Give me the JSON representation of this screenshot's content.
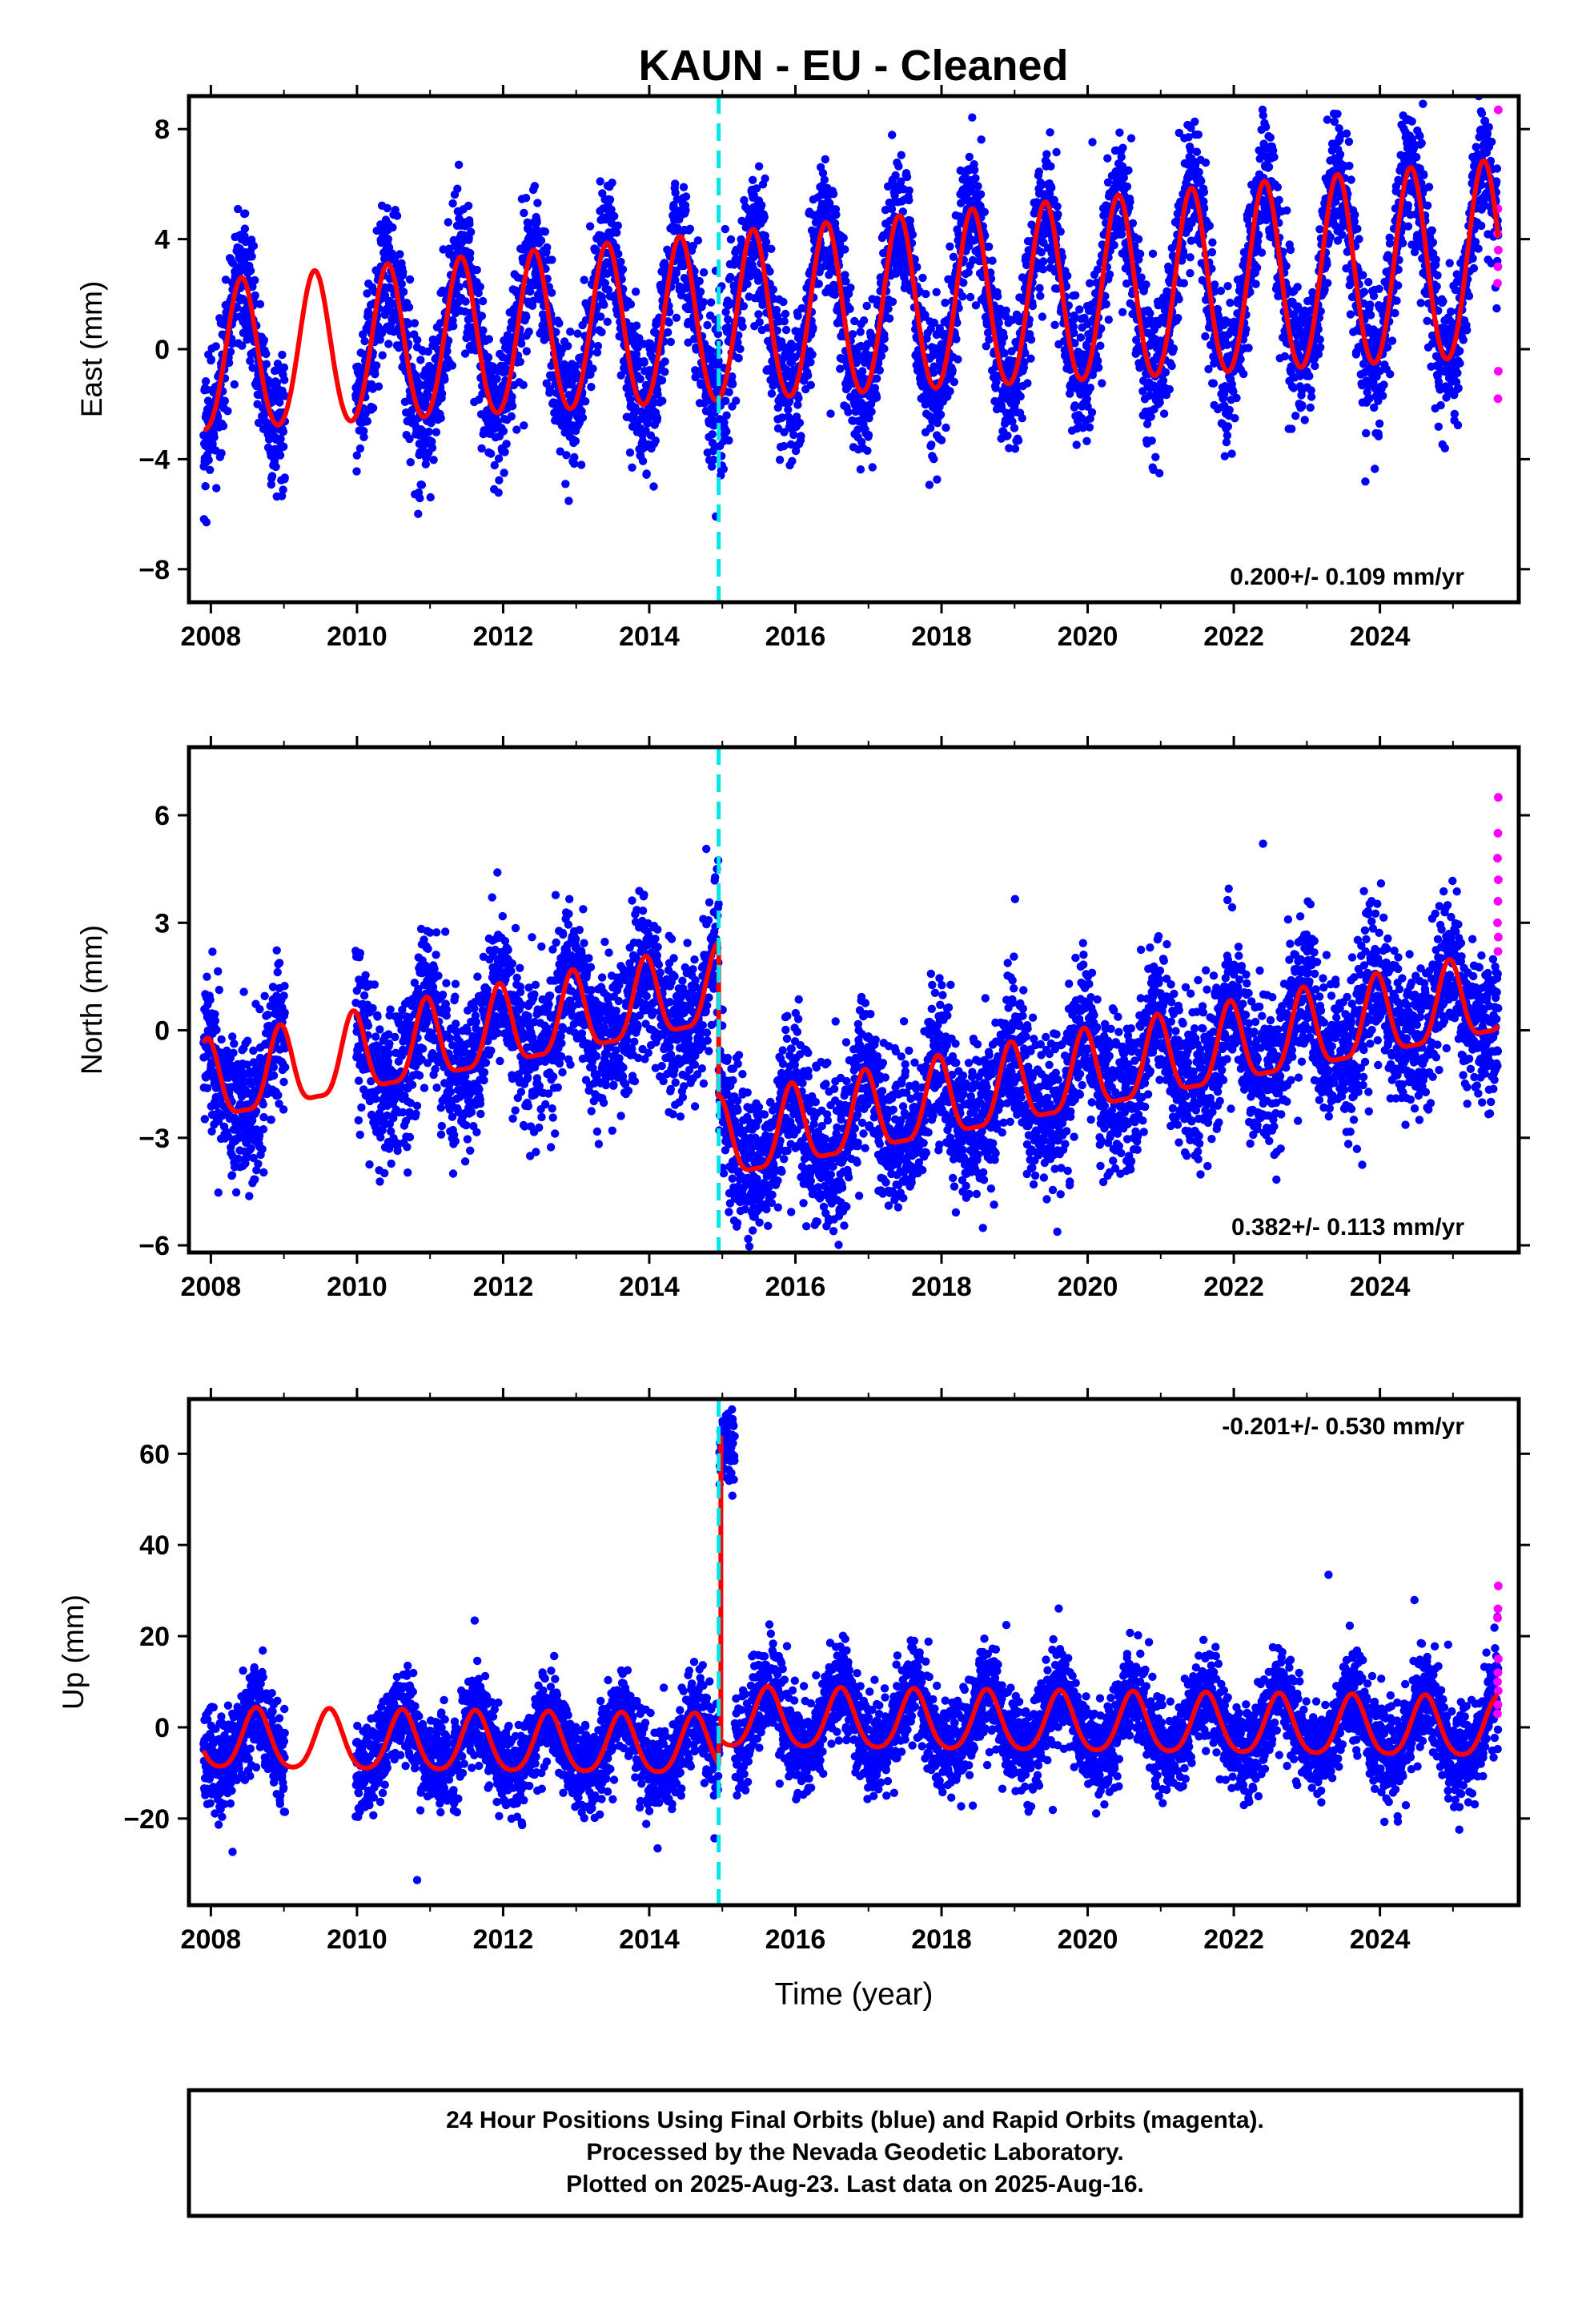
{
  "title": "KAUN  - EU - Cleaned",
  "colors": {
    "final_orbits": "#0000ff",
    "rapid_orbits": "#ff00ff",
    "model_fit": "#ff0000",
    "offset_marker": "#00e5e5",
    "frame": "#000000"
  },
  "footer": {
    "line1": "24 Hour Positions Using Final Orbits (blue) and Rapid Orbits (magenta).",
    "line2": "Processed by the Nevada Geodetic Laboratory.",
    "line3": "Plotted on 2025-Aug-23. Last data on 2025-Aug-16."
  },
  "chart_data": [
    {
      "type": "scatter",
      "panel": "east",
      "ylabel": "East (mm)",
      "xlabel": "",
      "xlim": [
        2007.7,
        2025.9
      ],
      "ylim": [
        -9.2,
        9.2
      ],
      "xticks": [
        "2008",
        "2010",
        "2012",
        "2014",
        "2016",
        "2018",
        "2020",
        "2022",
        "2024"
      ],
      "yticks": [
        "8",
        "4",
        "0",
        "−4",
        "−8"
      ],
      "rate_label": "0.200+/- 0.109 mm/yr",
      "offset_event_year": 2014.95,
      "data_span": [
        2007.9,
        2025.62
      ],
      "data_gap": [
        2009.02,
        2009.98
      ],
      "rapid_orbit_span": [
        2025.5,
        2025.62
      ],
      "series": [
        {
          "name": "Final orbits (blue)",
          "noise_sd_mm": 1.25,
          "approx_n": 6300
        },
        {
          "name": "Rapid orbits (magenta)",
          "approx_values_mm": [
            8.7,
            5.1,
            4.2,
            3.6,
            3.0,
            2.4,
            -0.8,
            -1.8
          ]
        }
      ],
      "model": {
        "name": "Model fit (red)",
        "trend_mm_per_yr": 0.2,
        "intercept_mm_at_2008": -0.4,
        "annual_amp_mm": 2.7,
        "annual_peak_phase_yr": 0.42,
        "amp_growth_mm_per_yr": 0.05,
        "semiannual_amp_mm": 0.2,
        "offset_mm": 0.0
      }
    },
    {
      "type": "scatter",
      "panel": "north",
      "ylabel": "North (mm)",
      "xlabel": "",
      "xlim": [
        2007.7,
        2025.9
      ],
      "ylim": [
        -6.2,
        7.9
      ],
      "xticks": [
        "2008",
        "2010",
        "2012",
        "2014",
        "2016",
        "2018",
        "2020",
        "2022",
        "2024"
      ],
      "yticks": [
        "6",
        "3",
        "0",
        "−3",
        "−6"
      ],
      "rate_label": "0.382+/- 0.113 mm/yr",
      "offset_event_year": 2014.95,
      "data_span": [
        2007.9,
        2025.62
      ],
      "data_gap": [
        2009.02,
        2009.98
      ],
      "rapid_orbit_span": [
        2025.5,
        2025.62
      ],
      "series": [
        {
          "name": "Final orbits (blue)",
          "noise_sd_mm": 1.05,
          "approx_n": 6300
        },
        {
          "name": "Rapid orbits (magenta)",
          "approx_values_mm": [
            6.5,
            5.5,
            4.8,
            4.2,
            3.6,
            3.0,
            2.6,
            2.2
          ]
        }
      ],
      "model": {
        "name": "Model fit (red)",
        "trend_mm_per_yr": 0.382,
        "intercept_mm_at_2008": -1.6,
        "annual_amp_mm": 1.1,
        "annual_peak_phase_yr": 0.95,
        "amp_growth_mm_per_yr": 0.0,
        "semiannual_amp_mm": 0.3,
        "offset_mm": -4.3
      }
    },
    {
      "type": "scatter",
      "panel": "up",
      "ylabel": "Up (mm)",
      "xlabel": "Time (year)",
      "xlim": [
        2007.7,
        2025.9
      ],
      "ylim": [
        -39,
        72
      ],
      "xticks": [
        "2008",
        "2010",
        "2012",
        "2014",
        "2016",
        "2018",
        "2020",
        "2022",
        "2024"
      ],
      "yticks": [
        "60",
        "40",
        "20",
        "0",
        "−20"
      ],
      "rate_label": "-0.201+/- 0.530 mm/yr",
      "offset_event_year": 2014.95,
      "data_span": [
        2007.9,
        2025.62
      ],
      "data_gap": [
        2009.02,
        2009.98
      ],
      "rapid_orbit_span": [
        2025.5,
        2025.62
      ],
      "transient": {
        "start": 2014.96,
        "end": 2015.17,
        "level_mm": 62
      },
      "series": [
        {
          "name": "Final orbits (blue)",
          "noise_sd_mm": 5.0,
          "approx_n": 6300
        },
        {
          "name": "Rapid orbits (magenta)",
          "approx_values_mm": [
            31,
            26,
            24,
            15,
            12,
            10,
            8,
            5,
            3
          ]
        }
      ],
      "model": {
        "name": "Model fit (red)",
        "trend_mm_per_yr": -0.201,
        "intercept_mm_at_2008": -3.0,
        "annual_amp_mm": 6.5,
        "annual_peak_phase_yr": 0.62,
        "amp_growth_mm_per_yr": 0.0,
        "semiannual_amp_mm": 1.0,
        "offset_mm": 6.0
      }
    }
  ]
}
